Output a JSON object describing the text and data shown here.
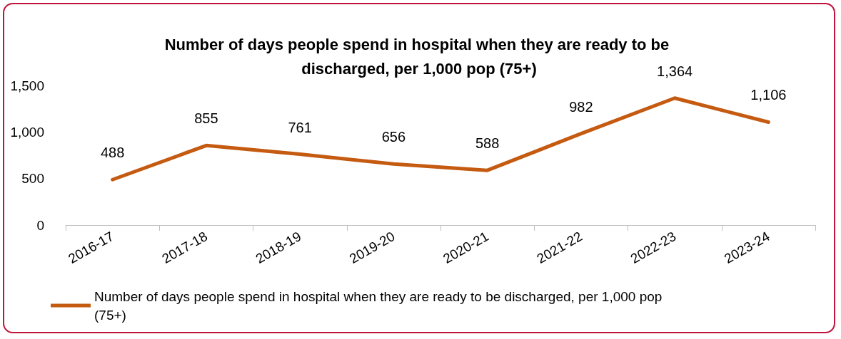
{
  "chart_data": {
    "type": "line",
    "title": "Number of days people spend in hospital when they are ready to be discharged, per 1,000 pop (75+)",
    "categories": [
      "2016-17",
      "2017-18",
      "2018-19",
      "2019-20",
      "2020-21",
      "2021-22",
      "2022-23",
      "2023-24"
    ],
    "series": [
      {
        "name": "Number of days people spend in hospital when they are ready to be discharged, per 1,000 pop (75+)",
        "color": "#c55a11",
        "values": [
          488,
          855,
          761,
          656,
          588,
          982,
          1364,
          1106
        ],
        "value_labels": [
          "488",
          "855",
          "761",
          "656",
          "588",
          "982",
          "1,364",
          "1,106"
        ]
      }
    ],
    "ylim": [
      0,
      1500
    ],
    "yticks": [
      0,
      500,
      {
        "value": 1000,
        "label": "1,000"
      },
      {
        "value": 1500,
        "label": "1,500"
      }
    ],
    "grid": false,
    "legend": "bottom",
    "marker": "none",
    "line_style": "solid"
  }
}
